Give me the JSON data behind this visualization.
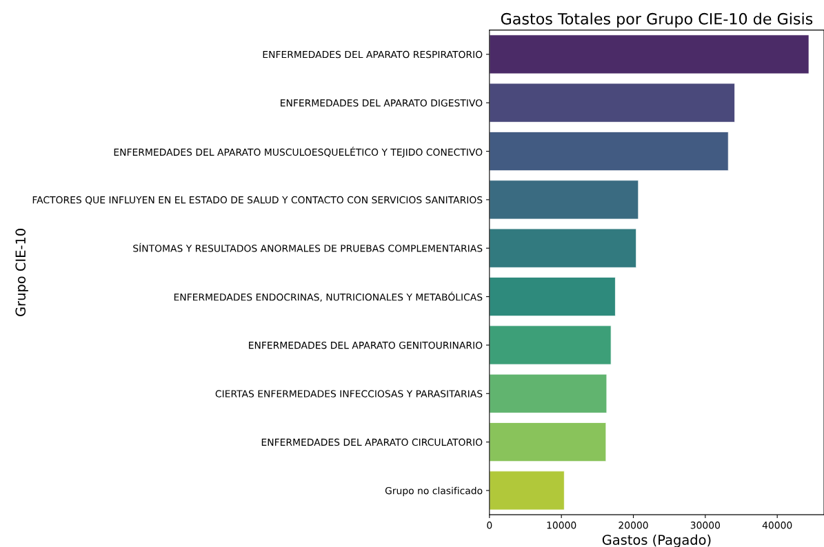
{
  "chart_data": {
    "type": "bar",
    "orientation": "horizontal",
    "title": "Gastos Totales por Grupo CIE-10 de Gisis",
    "xlabel": "Gastos (Pagado)",
    "ylabel": "Grupo CIE-10",
    "categories": [
      "ENFERMEDADES DEL APARATO RESPIRATORIO",
      "ENFERMEDADES DEL APARATO DIGESTIVO",
      "ENFERMEDADES DEL APARATO MUSCULOESQUELÉTICO Y TEJIDO CONECTIVO",
      "FACTORES QUE INFLUYEN EN EL ESTADO DE SALUD Y CONTACTO CON SERVICIOS SANITARIOS",
      "SÍNTOMAS Y RESULTADOS ANORMALES DE PRUEBAS COMPLEMENTARIAS",
      "ENFERMEDADES ENDOCRINAS, NUTRICIONALES Y METABÓLICAS",
      "ENFERMEDADES DEL APARATO GENITOURINARIO",
      "CIERTAS ENFERMEDADES INFECCIOSAS Y PARASITARIAS",
      "ENFERMEDADES DEL APARATO CIRCULATORIO",
      "Grupo no clasificado"
    ],
    "values": [
      44400,
      34100,
      33200,
      20700,
      20400,
      17500,
      16900,
      16300,
      16200,
      10400
    ],
    "colors": [
      "#4b2b67",
      "#4a497b",
      "#425b82",
      "#3a6b81",
      "#327a7f",
      "#2e8a7c",
      "#3d9f78",
      "#61b46f",
      "#89c35b",
      "#b1c83a"
    ],
    "xlim": [
      0,
      46500
    ],
    "xticks": [
      0,
      10000,
      20000,
      30000,
      40000
    ],
    "grid": false,
    "legend": false
  }
}
